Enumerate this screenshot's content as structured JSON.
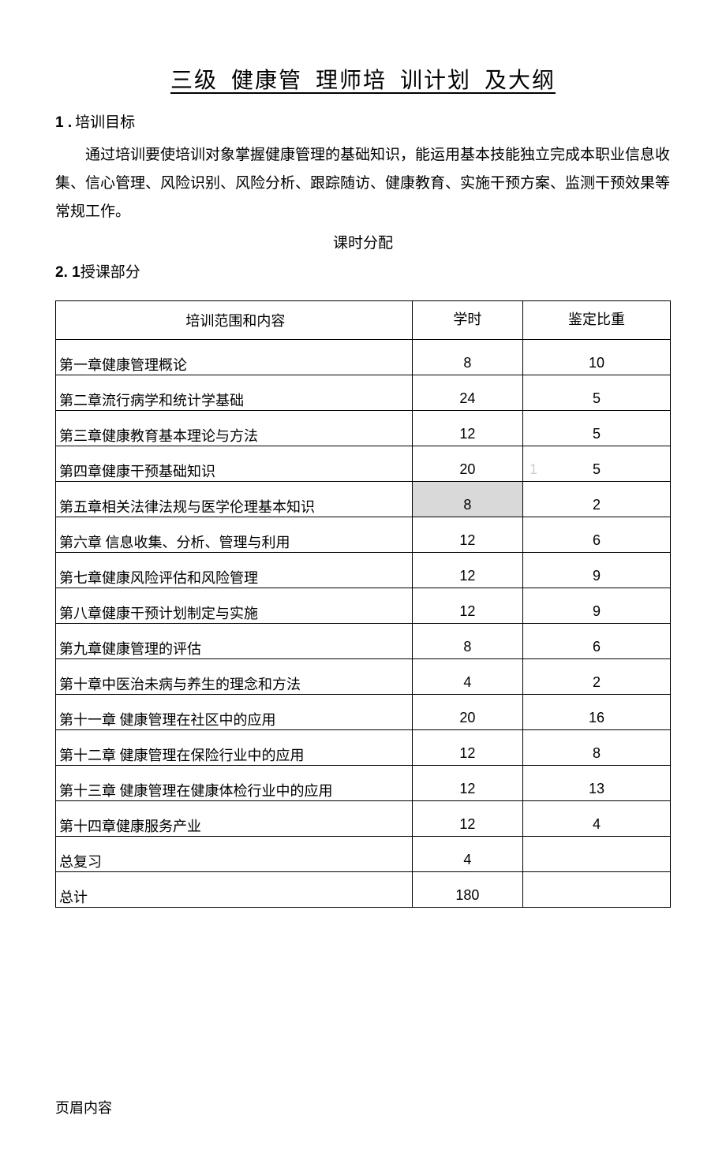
{
  "title": "三级 健康管 理师培 训计划 及大纲",
  "section1_num": "1 .",
  "section1_label": "培训目标",
  "paragraph": "通过培训要使培训对象掌握健康管理的基础知识，能运用基本技能独立完成本职业信息收集、信心管理、风险识别、风险分析、跟踪随访、健康教育、实施干预方案、监测干预效果等常规工作。",
  "subtitle": "课时分配",
  "section2_num": "2. 1",
  "section2_label": "授课部分",
  "table": {
    "headers": [
      "培训范围和内容",
      "学时",
      "鉴定比重"
    ],
    "rows": [
      {
        "content": "第一章健康管理概论",
        "hours": "8",
        "weight": "10",
        "highlight": false
      },
      {
        "content": "第二章流行病学和统计学基础",
        "hours": "24",
        "weight": "5",
        "highlight": false
      },
      {
        "content": "第三章健康教育基本理论与方法",
        "hours": "12",
        "weight": "5",
        "highlight": false
      },
      {
        "content": "第四章健康干预基础知识",
        "hours": "20",
        "weight": "5",
        "highlight": false,
        "watermark": "1"
      },
      {
        "content": "第五章相关法律法规与医学伦理基本知识",
        "hours": "8",
        "weight": "2",
        "highlight": true
      },
      {
        "content": "第六章 信息收集、分析、管理与利用",
        "hours": "12",
        "weight": "6",
        "highlight": false
      },
      {
        "content": "第七章健康风险评估和风险管理",
        "hours": "12",
        "weight": "9",
        "highlight": false
      },
      {
        "content": "第八章健康干预计划制定与实施",
        "hours": "12",
        "weight": "9",
        "highlight": false
      },
      {
        "content": "第九章健康管理的评估",
        "hours": "8",
        "weight": "6",
        "highlight": false
      },
      {
        "content": "第十章中医治未病与养生的理念和方法",
        "hours": "4",
        "weight": "2",
        "highlight": false
      },
      {
        "content": "第十一章 健康管理在社区中的应用",
        "hours": "20",
        "weight": "16",
        "highlight": false
      },
      {
        "content": "第十二章 健康管理在保险行业中的应用",
        "hours": "12",
        "weight": "8",
        "highlight": false
      },
      {
        "content": "第十三章 健康管理在健康体检行业中的应用",
        "hours": "12",
        "weight": "13",
        "highlight": false
      },
      {
        "content": "第十四章健康服务产业",
        "hours": "12",
        "weight": "4",
        "highlight": false
      },
      {
        "content": "总复习",
        "hours": "4",
        "weight": "",
        "highlight": false
      },
      {
        "content": "总计",
        "hours": "180",
        "weight": "",
        "highlight": false
      }
    ]
  },
  "footer": "页眉内容"
}
